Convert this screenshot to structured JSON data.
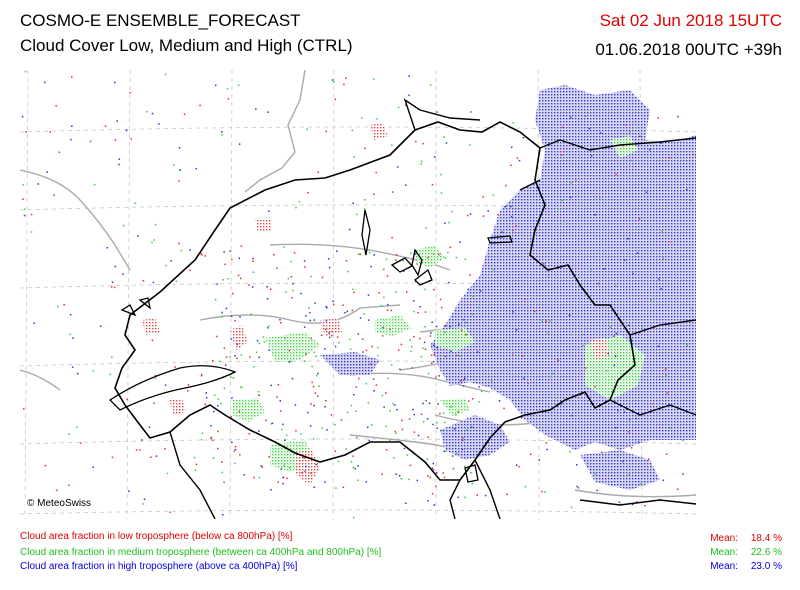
{
  "header": {
    "title": "COSMO-E ENSEMBLE_FORECAST",
    "subtitle": "Cloud Cover Low, Medium and High (CTRL)",
    "valid_time": "Sat 02 Jun 2018 15UTC",
    "run_and_lead": "01.06.2018 00UTC +39h"
  },
  "map": {
    "copyright": "© MeteoSwiss",
    "layers": [
      {
        "id": "low",
        "color": "#e03030"
      },
      {
        "id": "medium",
        "color": "#30d030"
      },
      {
        "id": "high",
        "color": "#3030d0"
      }
    ]
  },
  "legend": {
    "mean_label": "Mean:",
    "items": [
      {
        "text": "Cloud area fraction in low troposphere (below ca 800hPa) [%]",
        "mean": "18.4 %",
        "color": "#e00000"
      },
      {
        "text": "Cloud area fraction in medium troposphere (between ca 400hPa and 800hPa) [%]",
        "mean": "22.6 %",
        "color": "#20c020"
      },
      {
        "text": "Cloud area fraction in high troposphere (above ca 400hPa) [%]",
        "mean": "23.0 %",
        "color": "#0000e0"
      }
    ]
  }
}
